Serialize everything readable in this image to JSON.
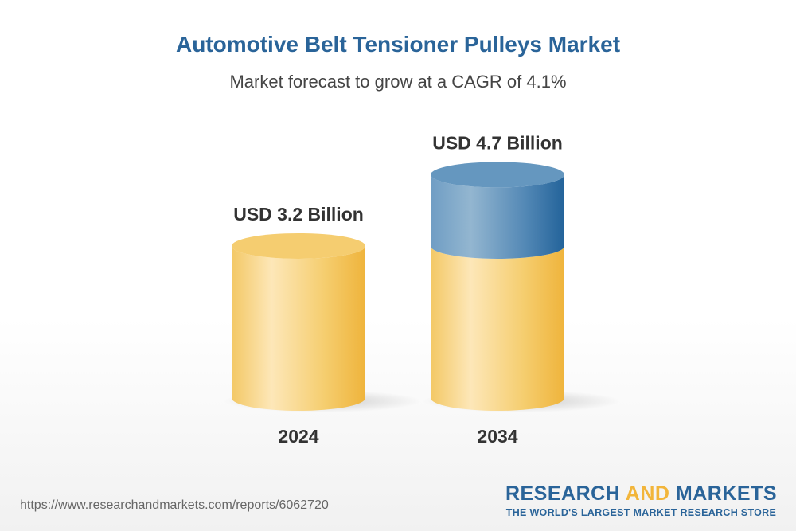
{
  "header": {
    "title": "Automotive Belt Tensioner Pulleys Market",
    "subtitle": "Market forecast to grow at a CAGR of 4.1%"
  },
  "chart_data": {
    "type": "bar",
    "style": "3d-cylinder",
    "categories": [
      "2024",
      "2034"
    ],
    "values": [
      3.2,
      4.7
    ],
    "data_labels": [
      "USD 3.2 Billion",
      "USD 4.7 Billion"
    ],
    "unit": "USD Billion",
    "cagr": "4.1%",
    "colors": {
      "base": "#f2c14e",
      "growth": "#3d7aab"
    }
  },
  "footer": {
    "url": "https://www.researchandmarkets.com/reports/6062720",
    "logo_part1": "RESEARCH ",
    "logo_part2": "AND",
    "logo_part3": " MARKETS",
    "logo_tagline": "THE WORLD'S LARGEST MARKET RESEARCH STORE"
  }
}
